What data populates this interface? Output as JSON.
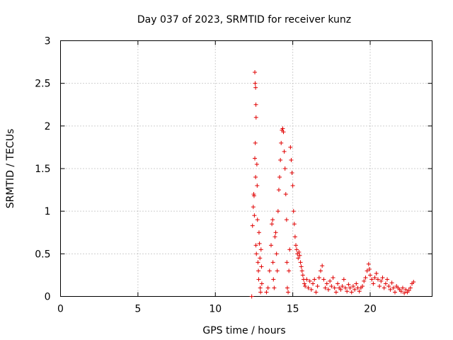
{
  "chart_data": {
    "type": "scatter",
    "title": "Day 037 of 2023, SRMTID for receiver kunz",
    "xlabel": "GPS time / hours",
    "ylabel": "SRMTID / TECUs",
    "xlim": [
      0,
      24
    ],
    "ylim": [
      0,
      3
    ],
    "xticks": [
      "0",
      "5",
      "10",
      "15",
      "20"
    ],
    "yticks": [
      "0",
      "0.5",
      "1",
      "1.5",
      "2",
      "2.5",
      "3"
    ],
    "grid": true,
    "marker": "+",
    "marker_color": "#e00000",
    "series": [
      {
        "name": "SRMTID",
        "points": [
          [
            12.35,
            0.0
          ],
          [
            12.4,
            0.83
          ],
          [
            12.45,
            1.05
          ],
          [
            12.48,
            1.2
          ],
          [
            12.5,
            1.18
          ],
          [
            12.52,
            0.95
          ],
          [
            12.55,
            2.63
          ],
          [
            12.57,
            2.5
          ],
          [
            12.6,
            2.45
          ],
          [
            12.62,
            2.25
          ],
          [
            12.63,
            2.1
          ],
          [
            12.55,
            1.62
          ],
          [
            12.58,
            1.8
          ],
          [
            12.6,
            1.4
          ],
          [
            12.62,
            0.6
          ],
          [
            12.65,
            0.5
          ],
          [
            12.68,
            1.55
          ],
          [
            12.7,
            1.3
          ],
          [
            12.72,
            0.9
          ],
          [
            12.75,
            0.4
          ],
          [
            12.78,
            0.3
          ],
          [
            12.8,
            0.2
          ],
          [
            12.82,
            0.75
          ],
          [
            12.85,
            0.62
          ],
          [
            12.88,
            0.45
          ],
          [
            12.9,
            0.1
          ],
          [
            12.92,
            0.05
          ],
          [
            12.95,
            0.55
          ],
          [
            12.98,
            0.35
          ],
          [
            13.0,
            0.15
          ],
          [
            13.3,
            0.05
          ],
          [
            13.4,
            0.1
          ],
          [
            13.5,
            0.3
          ],
          [
            13.6,
            0.6
          ],
          [
            13.65,
            0.85
          ],
          [
            13.7,
            0.9
          ],
          [
            13.72,
            0.4
          ],
          [
            13.75,
            0.2
          ],
          [
            13.8,
            0.1
          ],
          [
            13.85,
            0.7
          ],
          [
            13.9,
            0.75
          ],
          [
            13.95,
            0.5
          ],
          [
            14.0,
            0.3
          ],
          [
            14.05,
            1.0
          ],
          [
            14.1,
            1.25
          ],
          [
            14.15,
            1.4
          ],
          [
            14.2,
            1.6
          ],
          [
            14.25,
            1.8
          ],
          [
            14.3,
            1.95
          ],
          [
            14.35,
            1.97
          ],
          [
            14.4,
            1.93
          ],
          [
            14.45,
            1.7
          ],
          [
            14.5,
            1.5
          ],
          [
            14.55,
            1.2
          ],
          [
            14.6,
            0.9
          ],
          [
            14.62,
            0.4
          ],
          [
            14.65,
            0.1
          ],
          [
            14.7,
            0.05
          ],
          [
            14.75,
            0.3
          ],
          [
            14.8,
            0.55
          ],
          [
            14.85,
            1.75
          ],
          [
            14.9,
            1.6
          ],
          [
            14.95,
            1.45
          ],
          [
            15.0,
            1.3
          ],
          [
            15.05,
            1.0
          ],
          [
            15.1,
            0.85
          ],
          [
            15.15,
            0.7
          ],
          [
            15.2,
            0.6
          ],
          [
            15.25,
            0.55
          ],
          [
            15.3,
            0.5
          ],
          [
            15.35,
            0.45
          ],
          [
            15.4,
            0.52
          ],
          [
            15.45,
            0.48
          ],
          [
            15.5,
            0.4
          ],
          [
            15.55,
            0.35
          ],
          [
            15.6,
            0.3
          ],
          [
            15.65,
            0.25
          ],
          [
            15.7,
            0.2
          ],
          [
            15.75,
            0.15
          ],
          [
            15.8,
            0.12
          ],
          [
            15.9,
            0.2
          ],
          [
            16.0,
            0.1
          ],
          [
            16.1,
            0.18
          ],
          [
            16.2,
            0.08
          ],
          [
            16.3,
            0.15
          ],
          [
            16.4,
            0.2
          ],
          [
            16.5,
            0.05
          ],
          [
            16.6,
            0.12
          ],
          [
            16.7,
            0.22
          ],
          [
            16.8,
            0.3
          ],
          [
            16.9,
            0.36
          ],
          [
            17.0,
            0.2
          ],
          [
            17.1,
            0.1
          ],
          [
            17.2,
            0.15
          ],
          [
            17.3,
            0.08
          ],
          [
            17.4,
            0.18
          ],
          [
            17.5,
            0.12
          ],
          [
            17.6,
            0.22
          ],
          [
            17.7,
            0.1
          ],
          [
            17.8,
            0.05
          ],
          [
            17.9,
            0.15
          ],
          [
            18.0,
            0.1
          ],
          [
            18.1,
            0.08
          ],
          [
            18.2,
            0.12
          ],
          [
            18.3,
            0.2
          ],
          [
            18.4,
            0.1
          ],
          [
            18.5,
            0.06
          ],
          [
            18.6,
            0.14
          ],
          [
            18.7,
            0.1
          ],
          [
            18.8,
            0.05
          ],
          [
            18.9,
            0.12
          ],
          [
            19.0,
            0.08
          ],
          [
            19.1,
            0.15
          ],
          [
            19.2,
            0.1
          ],
          [
            19.3,
            0.06
          ],
          [
            19.4,
            0.1
          ],
          [
            19.5,
            0.12
          ],
          [
            19.6,
            0.18
          ],
          [
            19.7,
            0.22
          ],
          [
            19.8,
            0.3
          ],
          [
            19.9,
            0.38
          ],
          [
            19.95,
            0.32
          ],
          [
            20.0,
            0.25
          ],
          [
            20.1,
            0.2
          ],
          [
            20.2,
            0.15
          ],
          [
            20.3,
            0.22
          ],
          [
            20.4,
            0.27
          ],
          [
            20.5,
            0.2
          ],
          [
            20.6,
            0.12
          ],
          [
            20.7,
            0.18
          ],
          [
            20.8,
            0.22
          ],
          [
            20.9,
            0.1
          ],
          [
            21.0,
            0.15
          ],
          [
            21.1,
            0.2
          ],
          [
            21.2,
            0.12
          ],
          [
            21.3,
            0.08
          ],
          [
            21.4,
            0.16
          ],
          [
            21.5,
            0.1
          ],
          [
            21.6,
            0.05
          ],
          [
            21.7,
            0.12
          ],
          [
            21.8,
            0.1
          ],
          [
            21.9,
            0.08
          ],
          [
            22.0,
            0.06
          ],
          [
            22.1,
            0.1
          ],
          [
            22.2,
            0.04
          ],
          [
            22.3,
            0.08
          ],
          [
            22.4,
            0.05
          ],
          [
            22.5,
            0.07
          ],
          [
            22.6,
            0.1
          ],
          [
            22.7,
            0.15
          ],
          [
            22.8,
            0.17
          ]
        ]
      }
    ]
  }
}
